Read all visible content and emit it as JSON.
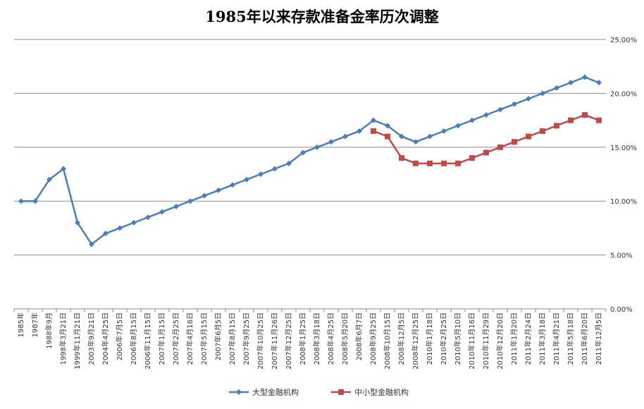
{
  "chart_data": {
    "type": "line",
    "title": "1985年以来存款准备金率历次调整",
    "categories": [
      "1985年",
      "1987年",
      "1988年9月",
      "1998年3月21日",
      "1999年11月21日",
      "2003年9月21日",
      "2004年4月25日",
      "2006年7月5日",
      "2006年8月15日",
      "2006年11月15日",
      "2007年1月15日",
      "2007年2月25日",
      "2007年4月16日",
      "2007年5月15日",
      "2007年6月5日",
      "2007年8月15日",
      "2007年9月25日",
      "2007年10月25日",
      "2007年11月26日",
      "2007年12月25日",
      "2008年1月25日",
      "2008年3月18日",
      "2008年4月25日",
      "2008年5月20日",
      "2008年6月7日",
      "2008年9月25日",
      "2008年10月15日",
      "2008年12月5日",
      "2008年12月25日",
      "2010年1月18日",
      "2010年2月25日",
      "2010年5月10日",
      "2010年11月16日",
      "2010年11月29日",
      "2010年12月20日",
      "2011年1月20日",
      "2011年2月24日",
      "2011年3月18日",
      "2011年4月21日",
      "2011年5月18日",
      "2011年6月20日",
      "2011年12月5日"
    ],
    "series": [
      {
        "name": "大型金融机构",
        "color": "#4A7EBB",
        "marker": "diamond",
        "values": [
          10,
          10,
          12,
          13,
          8,
          6,
          7,
          7.5,
          8,
          8.5,
          9,
          9.5,
          10,
          10.5,
          11,
          11.5,
          12,
          12.5,
          13,
          13.5,
          14.5,
          15,
          15.5,
          16,
          16.5,
          17.5,
          17,
          16,
          15.5,
          16,
          16.5,
          17,
          17.5,
          18,
          18.5,
          19,
          19.5,
          20,
          20.5,
          21,
          21.5,
          21
        ]
      },
      {
        "name": "中小型金融机构",
        "color": "#BE4B48",
        "marker": "square",
        "values": [
          null,
          null,
          null,
          null,
          null,
          null,
          null,
          null,
          null,
          null,
          null,
          null,
          null,
          null,
          null,
          null,
          null,
          null,
          null,
          null,
          null,
          null,
          null,
          null,
          null,
          16.5,
          16,
          14,
          13.5,
          13.5,
          13.5,
          13.5,
          14,
          14.5,
          15,
          15.5,
          16,
          16.5,
          17,
          17.5,
          18,
          17.5
        ]
      }
    ],
    "y_ticks": [
      "0.00%",
      "5.00%",
      "10.00%",
      "15.00%",
      "20.00%",
      "25.00%"
    ],
    "ylim": [
      0,
      25
    ],
    "y_axis_side": "right",
    "grid": true,
    "legend_position": "bottom"
  }
}
